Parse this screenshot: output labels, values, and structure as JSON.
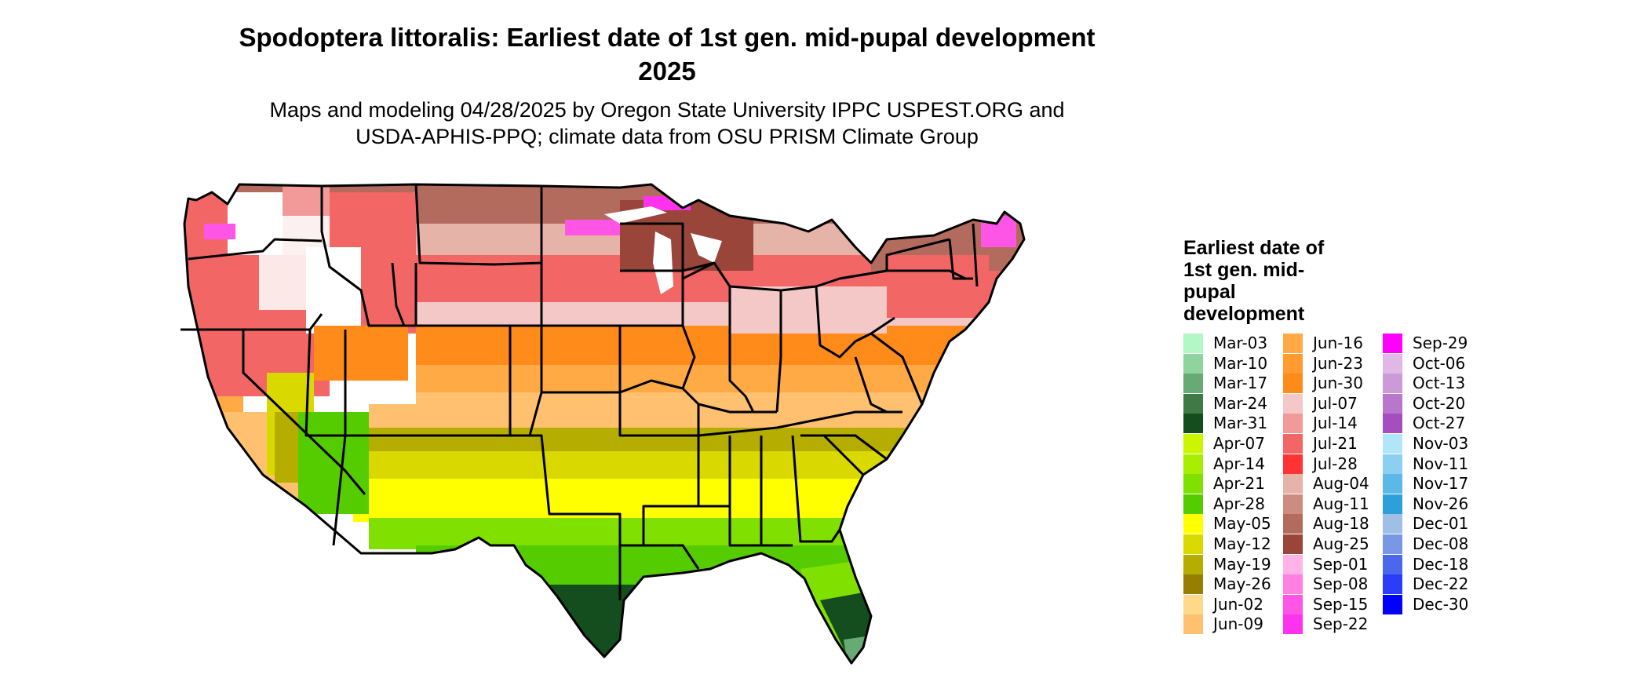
{
  "title": "Spodoptera littoralis: Earliest date of 1st gen. mid-pupal development 2025",
  "subtitle": "Maps and modeling 04/28/2025 by Oregon State University IPPC USPEST.ORG and USDA-APHIS-PPQ; climate data from OSU PRISM Climate Group",
  "legend": {
    "title": "Earliest date of 1st gen. mid-pupal development",
    "columns": [
      [
        {
          "label": "Mar-03",
          "color": "#b3f7c6"
        },
        {
          "label": "Mar-10",
          "color": "#8fd39f"
        },
        {
          "label": "Mar-17",
          "color": "#67aa75"
        },
        {
          "label": "Mar-24",
          "color": "#3d7a46"
        },
        {
          "label": "Mar-31",
          "color": "#144d1e"
        },
        {
          "label": "Apr-07",
          "color": "#ccf500"
        },
        {
          "label": "Apr-14",
          "color": "#a8ee00"
        },
        {
          "label": "Apr-21",
          "color": "#80e000"
        },
        {
          "label": "Apr-28",
          "color": "#55cc00"
        },
        {
          "label": "May-05",
          "color": "#ffff00"
        },
        {
          "label": "May-12",
          "color": "#d9d900"
        },
        {
          "label": "May-19",
          "color": "#b5ad00"
        },
        {
          "label": "May-26",
          "color": "#967f00"
        },
        {
          "label": "Jun-02",
          "color": "#ffd98a"
        },
        {
          "label": "Jun-09",
          "color": "#ffc070"
        }
      ],
      [
        {
          "label": "Jun-16",
          "color": "#ffaa44"
        },
        {
          "label": "Jun-23",
          "color": "#ff9b30"
        },
        {
          "label": "Jun-30",
          "color": "#ff8b1a"
        },
        {
          "label": "Jul-07",
          "color": "#f5c8c8"
        },
        {
          "label": "Jul-14",
          "color": "#f29a9a"
        },
        {
          "label": "Jul-21",
          "color": "#f26666"
        },
        {
          "label": "Jul-28",
          "color": "#ff3333"
        },
        {
          "label": "Aug-04",
          "color": "#e6b3a8"
        },
        {
          "label": "Aug-11",
          "color": "#cc8c80"
        },
        {
          "label": "Aug-18",
          "color": "#b36b5e"
        },
        {
          "label": "Aug-25",
          "color": "#99453a"
        },
        {
          "label": "Sep-01",
          "color": "#ffb3e6"
        },
        {
          "label": "Sep-08",
          "color": "#ff80e0"
        },
        {
          "label": "Sep-15",
          "color": "#ff55e6"
        },
        {
          "label": "Sep-22",
          "color": "#ff33ee"
        }
      ],
      [
        {
          "label": "Sep-29",
          "color": "#ff00ff"
        },
        {
          "label": "Oct-06",
          "color": "#e0b8e6"
        },
        {
          "label": "Oct-13",
          "color": "#cc99d9"
        },
        {
          "label": "Oct-20",
          "color": "#b877cc"
        },
        {
          "label": "Oct-27",
          "color": "#a44ebf"
        },
        {
          "label": "Nov-03",
          "color": "#b0e6f7"
        },
        {
          "label": "Nov-11",
          "color": "#8ccff0"
        },
        {
          "label": "Nov-17",
          "color": "#5cb8e6"
        },
        {
          "label": "Nov-26",
          "color": "#2ea0d9"
        },
        {
          "label": "Dec-01",
          "color": "#a0bfe6"
        },
        {
          "label": "Dec-08",
          "color": "#7a97e6"
        },
        {
          "label": "Dec-18",
          "color": "#4d66ee"
        },
        {
          "label": "Dec-22",
          "color": "#2a3dfa"
        },
        {
          "label": "Dec-30",
          "color": "#0000ff"
        }
      ]
    ]
  }
}
